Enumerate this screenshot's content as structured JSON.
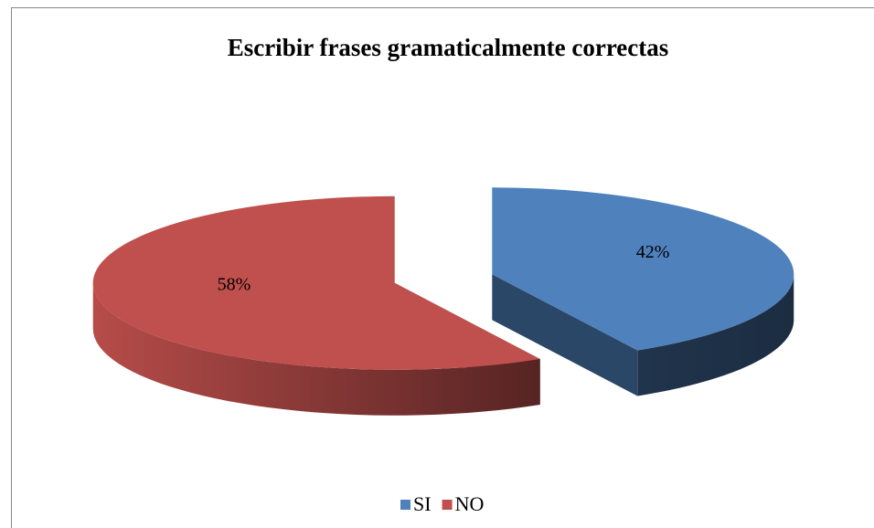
{
  "chart_data": {
    "type": "pie",
    "title": "Escribir frases gramaticalmente correctas",
    "categories": [
      "SI",
      "NO"
    ],
    "values": [
      42,
      58
    ],
    "value_labels": [
      "42%",
      "58%"
    ],
    "colors": [
      "#4f81bd",
      "#c0504d"
    ],
    "legend": "bottom"
  }
}
